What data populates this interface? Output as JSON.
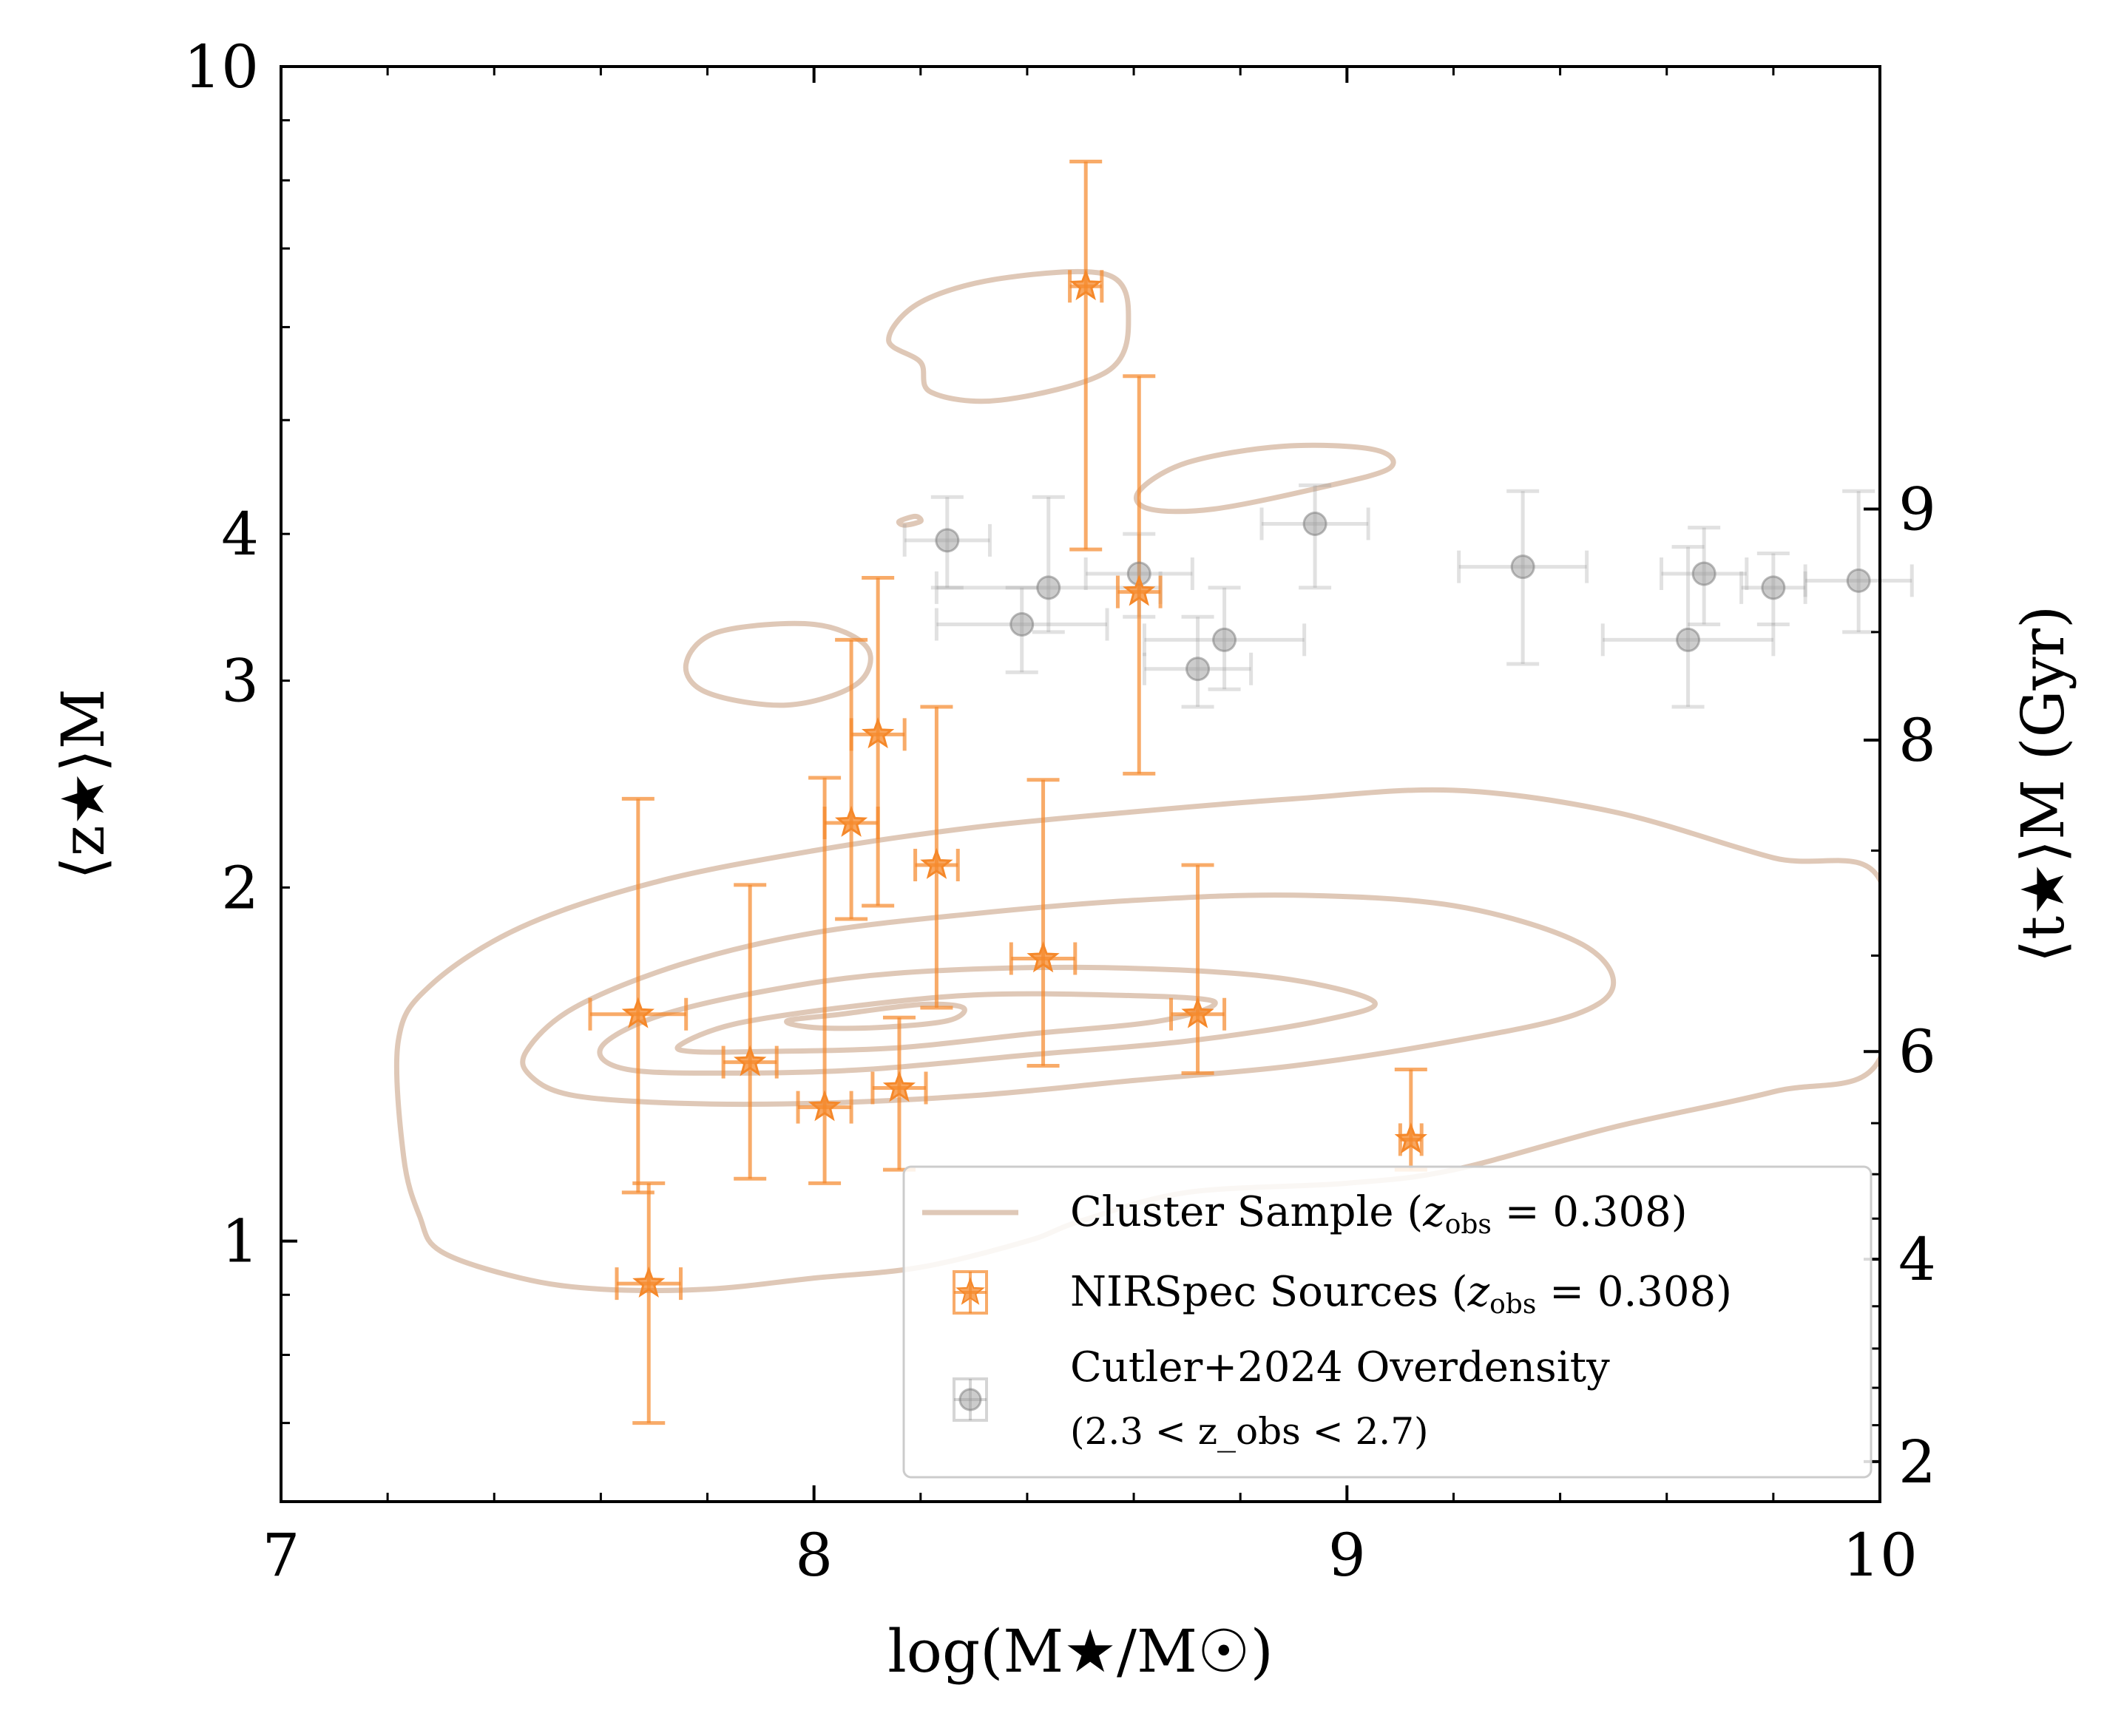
{
  "chart_data": {
    "type": "scatter",
    "xlabel": "log(M★/M☉)",
    "ylabel": "⟨z★⟩M",
    "y2label": "⟨t★⟩M (Gyr)",
    "xlim": [
      7,
      10
    ],
    "ylim": [
      0.6,
      10
    ],
    "yscale": "log",
    "x_ticks": [
      7,
      8,
      9,
      10
    ],
    "y_ticks": [
      1,
      2,
      3,
      4,
      10
    ],
    "y2_ticks": [
      {
        "label": "2",
        "z": 0.649
      },
      {
        "label": "4",
        "z": 0.965
      },
      {
        "label": "6",
        "z": 1.45
      },
      {
        "label": "8",
        "z": 2.67
      },
      {
        "label": "9",
        "z": 4.2
      }
    ],
    "legend": {
      "position": "lower-right",
      "entries": [
        {
          "label": "Cluster Sample (z_obs = 0.308)",
          "text": "Cluster Sample (",
          "math": "z",
          "sub": "obs",
          "value": " = 0.308)"
        },
        {
          "label": "NIRSpec Sources (z_obs = 0.308)",
          "text": "NIRSpec Sources (",
          "math": "z",
          "sub": "obs",
          "value": " = 0.308)"
        },
        {
          "label": "Cutler+2024 Overdensity",
          "line2": "(2.3 < z_obs < 2.7)"
        }
      ]
    },
    "series": [
      {
        "name": "NIRSpec Sources",
        "color": "#f5882a",
        "marker": "star",
        "points": [
          {
            "x": 7.67,
            "y": 1.56,
            "xerr": 0.09,
            "ylo": 1.1,
            "yhi": 2.38
          },
          {
            "x": 7.69,
            "y": 0.92,
            "xerr": 0.06,
            "ylo": 0.7,
            "yhi": 1.12
          },
          {
            "x": 7.88,
            "y": 1.42,
            "xerr": 0.05,
            "ylo": 1.13,
            "yhi": 2.01
          },
          {
            "x": 8.02,
            "y": 1.3,
            "xerr": 0.05,
            "ylo": 1.12,
            "yhi": 2.48
          },
          {
            "x": 8.07,
            "y": 2.27,
            "xerr": 0.05,
            "ylo": 1.88,
            "yhi": 3.25
          },
          {
            "x": 8.12,
            "y": 2.7,
            "xerr": 0.05,
            "ylo": 1.93,
            "yhi": 3.67
          },
          {
            "x": 8.16,
            "y": 1.35,
            "xerr": 0.05,
            "ylo": 1.15,
            "yhi": 1.55
          },
          {
            "x": 8.23,
            "y": 2.09,
            "xerr": 0.04,
            "ylo": 1.58,
            "yhi": 2.85
          },
          {
            "x": 8.43,
            "y": 1.74,
            "xerr": 0.06,
            "ylo": 1.41,
            "yhi": 2.47
          },
          {
            "x": 8.51,
            "y": 6.5,
            "xerr": 0.03,
            "ylo": 3.88,
            "yhi": 8.3
          },
          {
            "x": 8.61,
            "y": 3.57,
            "xerr": 0.04,
            "ylo": 2.5,
            "yhi": 5.45
          },
          {
            "x": 8.72,
            "y": 1.56,
            "xerr": 0.05,
            "ylo": 1.39,
            "yhi": 2.09
          },
          {
            "x": 9.12,
            "y": 1.22,
            "xerr": 0.02,
            "ylo": 1.15,
            "yhi": 1.4
          }
        ]
      },
      {
        "name": "Cutler+2024 Overdensity",
        "color": "#9a9a9a",
        "marker": "circle",
        "points": [
          {
            "x": 8.25,
            "y": 3.95,
            "xerr": 0.08,
            "ylo": 3.6,
            "yhi": 4.3
          },
          {
            "x": 8.39,
            "y": 3.35,
            "xerr": 0.16,
            "ylo": 3.05,
            "yhi": 3.6
          },
          {
            "x": 8.44,
            "y": 3.6,
            "xerr": 0.21,
            "ylo": 3.3,
            "yhi": 4.3
          },
          {
            "x": 8.61,
            "y": 3.7,
            "xerr": 0.1,
            "ylo": 3.4,
            "yhi": 4.0
          },
          {
            "x": 8.72,
            "y": 3.07,
            "xerr": 0.1,
            "ylo": 2.85,
            "yhi": 3.4
          },
          {
            "x": 8.77,
            "y": 3.25,
            "xerr": 0.15,
            "ylo": 2.95,
            "yhi": 3.6
          },
          {
            "x": 8.94,
            "y": 4.08,
            "xerr": 0.1,
            "ylo": 3.6,
            "yhi": 4.4
          },
          {
            "x": 9.33,
            "y": 3.75,
            "xerr": 0.12,
            "ylo": 3.1,
            "yhi": 4.35
          },
          {
            "x": 9.64,
            "y": 3.25,
            "xerr": 0.16,
            "ylo": 2.85,
            "yhi": 3.9
          },
          {
            "x": 9.67,
            "y": 3.7,
            "xerr": 0.08,
            "ylo": 3.35,
            "yhi": 4.05
          },
          {
            "x": 9.8,
            "y": 3.6,
            "xerr": 0.06,
            "ylo": 3.35,
            "yhi": 3.85
          },
          {
            "x": 9.96,
            "y": 3.65,
            "xerr": 0.1,
            "ylo": 3.3,
            "yhi": 4.35
          }
        ]
      },
      {
        "name": "Cluster Sample",
        "color": "#c49a7c",
        "marker": "contour",
        "contours": [
          [
            [
              7.22,
              1.48
            ],
            [
              7.28,
              1.65
            ],
            [
              7.45,
              1.85
            ],
            [
              7.7,
              2.02
            ],
            [
              8.0,
              2.15
            ],
            [
              8.3,
              2.25
            ],
            [
              8.6,
              2.32
            ],
            [
              8.9,
              2.38
            ],
            [
              9.2,
              2.42
            ],
            [
              9.5,
              2.32
            ],
            [
              9.8,
              2.12
            ],
            [
              10.0,
              2.03
            ],
            [
              10.0,
              1.43
            ],
            [
              9.8,
              1.34
            ],
            [
              9.5,
              1.25
            ],
            [
              9.2,
              1.15
            ],
            [
              9.0,
              1.12
            ],
            [
              8.7,
              1.1
            ],
            [
              8.5,
              1.04
            ],
            [
              8.4,
              1.0
            ],
            [
              8.2,
              0.95
            ],
            [
              8.0,
              0.93
            ],
            [
              7.8,
              0.91
            ],
            [
              7.6,
              0.91
            ],
            [
              7.45,
              0.93
            ],
            [
              7.3,
              0.98
            ],
            [
              7.26,
              1.05
            ],
            [
              7.23,
              1.18
            ],
            [
              7.22,
              1.48
            ]
          ],
          [
            [
              7.46,
              1.45
            ],
            [
              7.55,
              1.58
            ],
            [
              7.75,
              1.72
            ],
            [
              8.0,
              1.83
            ],
            [
              8.3,
              1.9
            ],
            [
              8.6,
              1.95
            ],
            [
              8.9,
              1.97
            ],
            [
              9.2,
              1.93
            ],
            [
              9.43,
              1.8
            ],
            [
              9.5,
              1.66
            ],
            [
              9.43,
              1.56
            ],
            [
              9.2,
              1.48
            ],
            [
              8.9,
              1.41
            ],
            [
              8.6,
              1.37
            ],
            [
              8.3,
              1.33
            ],
            [
              8.0,
              1.31
            ],
            [
              7.75,
              1.31
            ],
            [
              7.55,
              1.33
            ],
            [
              7.47,
              1.38
            ],
            [
              7.46,
              1.45
            ]
          ],
          [
            [
              7.6,
              1.46
            ],
            [
              7.7,
              1.55
            ],
            [
              7.9,
              1.63
            ],
            [
              8.15,
              1.69
            ],
            [
              8.5,
              1.71
            ],
            [
              8.85,
              1.68
            ],
            [
              9.05,
              1.6
            ],
            [
              8.95,
              1.54
            ],
            [
              8.7,
              1.48
            ],
            [
              8.4,
              1.44
            ],
            [
              8.1,
              1.4
            ],
            [
              7.85,
              1.39
            ],
            [
              7.65,
              1.4
            ],
            [
              7.6,
              1.46
            ]
          ],
          [
            [
              7.75,
              1.47
            ],
            [
              7.85,
              1.53
            ],
            [
              8.05,
              1.58
            ],
            [
              8.3,
              1.62
            ],
            [
              8.55,
              1.62
            ],
            [
              8.75,
              1.6
            ],
            [
              8.65,
              1.54
            ],
            [
              8.4,
              1.5
            ],
            [
              8.15,
              1.46
            ],
            [
              7.9,
              1.45
            ],
            [
              7.77,
              1.45
            ],
            [
              7.75,
              1.47
            ]
          ],
          [
            [
              7.95,
              1.54
            ],
            [
              8.05,
              1.56
            ],
            [
              8.2,
              1.59
            ],
            [
              8.28,
              1.58
            ],
            [
              8.25,
              1.54
            ],
            [
              8.12,
              1.52
            ],
            [
              8.0,
              1.52
            ],
            [
              7.95,
              1.54
            ]
          ],
          [
            [
              7.76,
              3.1
            ],
            [
              7.82,
              3.3
            ],
            [
              8.0,
              3.35
            ],
            [
              8.1,
              3.2
            ],
            [
              8.08,
              2.98
            ],
            [
              7.95,
              2.86
            ],
            [
              7.8,
              2.93
            ],
            [
              7.76,
              3.1
            ]
          ],
          [
            [
              8.61,
              4.35
            ],
            [
              8.7,
              4.6
            ],
            [
              8.88,
              4.75
            ],
            [
              9.05,
              4.72
            ],
            [
              9.08,
              4.55
            ],
            [
              8.95,
              4.38
            ],
            [
              8.75,
              4.2
            ],
            [
              8.63,
              4.2
            ],
            [
              8.61,
              4.35
            ]
          ],
          [
            [
              8.14,
              5.85
            ],
            [
              8.2,
              6.3
            ],
            [
              8.35,
              6.6
            ],
            [
              8.55,
              6.65
            ],
            [
              8.59,
              6.1
            ],
            [
              8.55,
              5.5
            ],
            [
              8.35,
              5.2
            ],
            [
              8.22,
              5.28
            ],
            [
              8.2,
              5.6
            ],
            [
              8.14,
              5.85
            ]
          ],
          [
            [
              8.16,
              4.1
            ],
            [
              8.19,
              4.14
            ],
            [
              8.2,
              4.1
            ],
            [
              8.17,
              4.07
            ],
            [
              8.16,
              4.1
            ]
          ]
        ]
      }
    ]
  }
}
